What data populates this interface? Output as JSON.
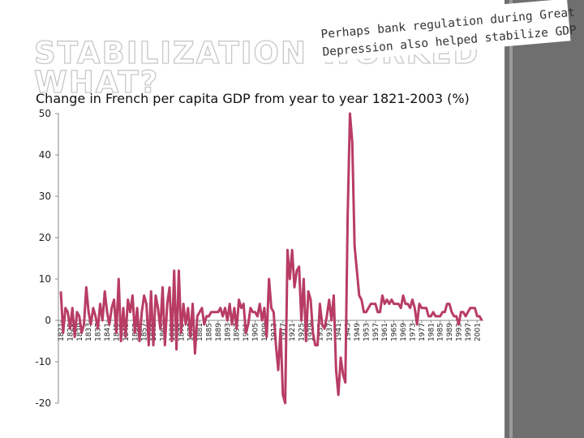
{
  "chart_data": {
    "type": "line",
    "title_lines": [
      "STABILIZATION WORKED",
      "WHAT?"
    ],
    "annotation_lines": [
      "Perhaps bank regulation during Great",
      "Depression also helped stabilize GDP"
    ],
    "subtitle": "Change in French per capita GDP from year to year 1821-2003 (%)",
    "x": [
      1821,
      1822,
      1823,
      1824,
      1825,
      1826,
      1827,
      1828,
      1829,
      1830,
      1831,
      1832,
      1833,
      1834,
      1835,
      1836,
      1837,
      1838,
      1839,
      1840,
      1841,
      1842,
      1843,
      1844,
      1845,
      1846,
      1847,
      1848,
      1849,
      1850,
      1851,
      1852,
      1853,
      1854,
      1855,
      1856,
      1857,
      1858,
      1859,
      1860,
      1861,
      1862,
      1863,
      1864,
      1865,
      1866,
      1867,
      1868,
      1869,
      1870,
      1871,
      1872,
      1873,
      1874,
      1875,
      1876,
      1877,
      1878,
      1879,
      1880,
      1881,
      1882,
      1883,
      1884,
      1885,
      1886,
      1887,
      1888,
      1889,
      1890,
      1891,
      1892,
      1893,
      1894,
      1895,
      1896,
      1897,
      1898,
      1899,
      1900,
      1901,
      1902,
      1903,
      1904,
      1905,
      1906,
      1907,
      1908,
      1909,
      1910,
      1911,
      1912,
      1913,
      1914,
      1915,
      1916,
      1917,
      1918,
      1919,
      1920,
      1921,
      1922,
      1923,
      1924,
      1925,
      1926,
      1927,
      1928,
      1929,
      1930,
      1931,
      1932,
      1933,
      1934,
      1935,
      1936,
      1937,
      1938,
      1939,
      1940,
      1941,
      1942,
      1943,
      1944,
      1945,
      1946,
      1947,
      1948,
      1949,
      1950,
      1951,
      1952,
      1953,
      1954,
      1955,
      1956,
      1957,
      1958,
      1959,
      1960,
      1961,
      1962,
      1963,
      1964,
      1965,
      1966,
      1967,
      1968,
      1969,
      1970,
      1971,
      1972,
      1973,
      1974,
      1975,
      1976,
      1977,
      1978,
      1979,
      1980,
      1981,
      1982,
      1983,
      1984,
      1985,
      1986,
      1987,
      1988,
      1989,
      1990,
      1991,
      1992,
      1993,
      1994,
      1995,
      1996,
      1997,
      1998,
      1999,
      2000,
      2001,
      2002,
      2003
    ],
    "series": [
      {
        "color": "#b83c64",
        "values": [
          7,
          -3,
          3,
          2,
          -2,
          3,
          -4,
          2,
          1,
          -3,
          -1,
          8,
          2,
          -1,
          3,
          1,
          -2,
          4,
          0,
          7,
          2,
          -1,
          3,
          5,
          -3,
          10,
          -5,
          3,
          -4,
          5,
          2,
          6,
          -3,
          3,
          -5,
          2,
          6,
          4,
          -6,
          7,
          -6,
          6,
          3,
          -2,
          8,
          -6,
          4,
          8,
          -5,
          12,
          -7,
          12,
          -3,
          4,
          -1,
          3,
          -4,
          4,
          -8,
          1,
          2,
          3,
          -1,
          1,
          1,
          2,
          2,
          2,
          2,
          3,
          1,
          3,
          0,
          4,
          -1,
          3,
          -2,
          5,
          3,
          4,
          -3,
          -1,
          3,
          2,
          2,
          1,
          4,
          0,
          3,
          -4,
          10,
          3,
          2,
          -6,
          -12,
          -2,
          -18,
          -20,
          17,
          10,
          17,
          8,
          12,
          13,
          0,
          10,
          -5,
          7,
          5,
          -3,
          -6,
          -6,
          4,
          -1,
          -2,
          1,
          5,
          0,
          6,
          -12,
          -18,
          -9,
          -13,
          -15,
          25,
          50,
          43,
          18,
          12,
          6,
          5,
          2,
          2,
          3,
          4,
          4,
          4,
          2,
          2,
          6,
          4,
          5,
          4,
          5,
          4,
          4,
          4,
          3,
          6,
          4,
          4,
          3,
          5,
          3,
          -1,
          4,
          3,
          3,
          3,
          1,
          1,
          2,
          1,
          1,
          1,
          2,
          2,
          4,
          4,
          2,
          1,
          1,
          -1,
          2,
          2,
          1,
          2,
          3,
          3,
          3,
          1,
          1,
          0
        ]
      }
    ],
    "xlim": [
      1821,
      2003
    ],
    "xticks": [
      1821,
      1825,
      1829,
      1833,
      1837,
      1841,
      1845,
      1849,
      1853,
      1857,
      1861,
      1865,
      1869,
      1873,
      1877,
      1881,
      1885,
      1889,
      1893,
      1897,
      1901,
      1905,
      1909,
      1913,
      1917,
      1921,
      1925,
      1929,
      1933,
      1937,
      1941,
      1945,
      1949,
      1953,
      1957,
      1961,
      1965,
      1969,
      1973,
      1977,
      1981,
      1985,
      1989,
      1993,
      1997,
      2001
    ],
    "ylim": [
      -20,
      50
    ],
    "yticks": [
      50,
      40,
      30,
      20,
      10,
      0,
      -10,
      -20
    ]
  }
}
